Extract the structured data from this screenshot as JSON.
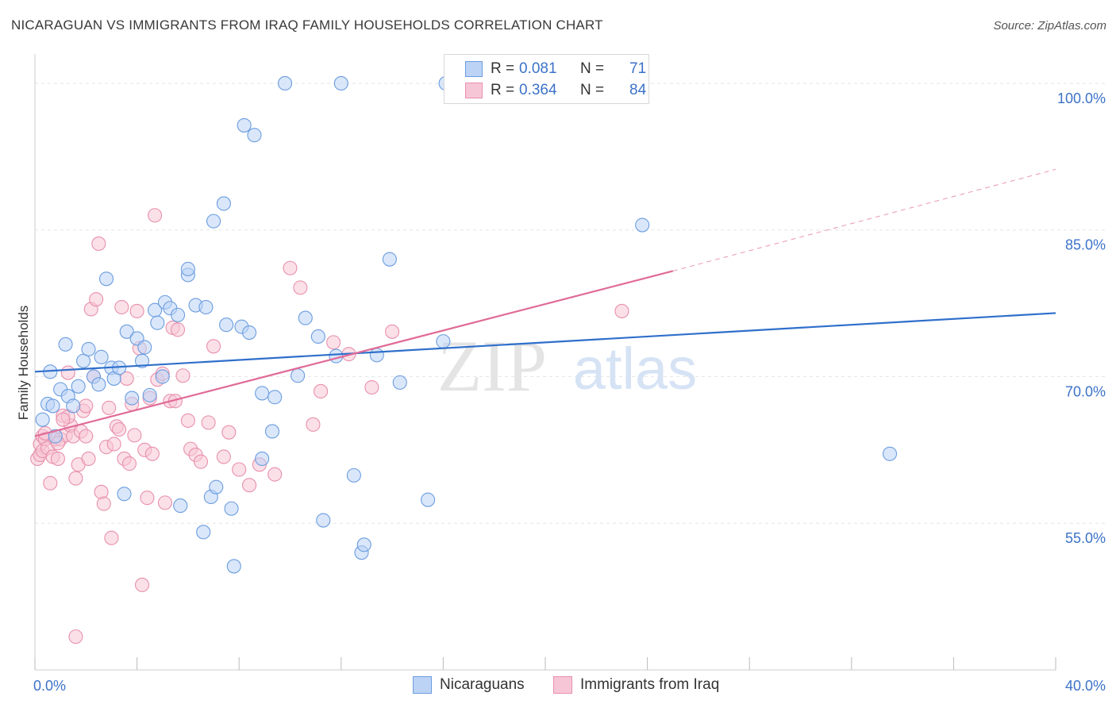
{
  "title": "NICARAGUAN VS IMMIGRANTS FROM IRAQ FAMILY HOUSEHOLDS CORRELATION CHART",
  "source": "Source: ZipAtlas.com",
  "watermark": {
    "zip": "ZIP",
    "atlas": "atlas"
  },
  "legend": {
    "rows": [
      {
        "r_label": "R =",
        "r_value": "0.081",
        "n_label": "N =",
        "n_value": "71"
      },
      {
        "r_label": "R =",
        "r_value": "0.364",
        "n_label": "N =",
        "n_value": "84"
      }
    ]
  },
  "bottom_legend": [
    "Nicaraguans",
    "Immigrants from Iraq"
  ],
  "colors": {
    "blue_fill": "#bcd3f5",
    "blue_stroke": "#6b9de0",
    "blue_line": "#2f6fcb",
    "pink_fill": "#f7c6d6",
    "pink_stroke": "#e890ad",
    "pink_line": "#e06b97",
    "axis_text": "#3c72c8",
    "grid": "#e6e6e6"
  },
  "chart_data": {
    "type": "scatter",
    "title": "NICARAGUAN VS IMMIGRANTS FROM IRAQ FAMILY HOUSEHOLDS CORRELATION CHART",
    "xlabel": "",
    "ylabel": "Family Households",
    "xlim": [
      0,
      40
    ],
    "ylim": [
      40,
      103
    ],
    "x_tick_labels": [
      "0.0%",
      "40.0%"
    ],
    "y_ticks": [
      55,
      70,
      85,
      100
    ],
    "y_tick_labels": [
      "55.0%",
      "70.0%",
      "85.0%",
      "100.0%"
    ],
    "grid": true,
    "series": [
      {
        "name": "Nicaraguans",
        "color": "#6b9de0",
        "trend": {
          "x0": 0,
          "y0": 70.5,
          "x1": 40,
          "y1": 76.5
        },
        "points": [
          [
            0.3,
            65.6
          ],
          [
            0.5,
            67.2
          ],
          [
            0.6,
            70.5
          ],
          [
            0.7,
            67.0
          ],
          [
            0.8,
            63.9
          ],
          [
            1.0,
            68.7
          ],
          [
            1.2,
            73.3
          ],
          [
            1.3,
            68.0
          ],
          [
            1.5,
            67.0
          ],
          [
            1.7,
            69.0
          ],
          [
            1.9,
            71.6
          ],
          [
            2.1,
            72.8
          ],
          [
            2.3,
            70.0
          ],
          [
            2.5,
            69.2
          ],
          [
            2.6,
            72.0
          ],
          [
            2.8,
            80.0
          ],
          [
            3.0,
            70.9
          ],
          [
            3.1,
            69.8
          ],
          [
            3.3,
            70.9
          ],
          [
            3.5,
            58.0
          ],
          [
            3.6,
            74.6
          ],
          [
            3.8,
            67.8
          ],
          [
            4.0,
            73.9
          ],
          [
            4.2,
            71.6
          ],
          [
            4.3,
            73.0
          ],
          [
            4.5,
            68.1
          ],
          [
            4.7,
            76.8
          ],
          [
            4.8,
            75.5
          ],
          [
            5.0,
            70.0
          ],
          [
            5.1,
            77.6
          ],
          [
            5.3,
            77.0
          ],
          [
            5.6,
            76.3
          ],
          [
            5.7,
            56.8
          ],
          [
            6.0,
            80.4
          ],
          [
            6.0,
            81.0
          ],
          [
            6.3,
            77.3
          ],
          [
            6.6,
            54.1
          ],
          [
            6.7,
            77.1
          ],
          [
            6.9,
            57.7
          ],
          [
            7.0,
            85.9
          ],
          [
            7.1,
            58.7
          ],
          [
            7.4,
            87.7
          ],
          [
            7.5,
            75.3
          ],
          [
            7.7,
            56.5
          ],
          [
            7.8,
            50.6
          ],
          [
            8.1,
            75.1
          ],
          [
            8.2,
            95.7
          ],
          [
            8.4,
            74.5
          ],
          [
            8.6,
            94.7
          ],
          [
            8.9,
            61.6
          ],
          [
            8.9,
            68.3
          ],
          [
            9.3,
            64.4
          ],
          [
            9.4,
            67.9
          ],
          [
            9.8,
            100.0
          ],
          [
            10.3,
            70.1
          ],
          [
            10.6,
            76.0
          ],
          [
            11.1,
            74.1
          ],
          [
            11.3,
            55.3
          ],
          [
            11.8,
            72.1
          ],
          [
            12.0,
            100.0
          ],
          [
            12.5,
            59.9
          ],
          [
            12.8,
            52.0
          ],
          [
            12.9,
            52.8
          ],
          [
            13.4,
            72.2
          ],
          [
            13.9,
            82.0
          ],
          [
            14.3,
            69.4
          ],
          [
            15.4,
            57.4
          ],
          [
            16.0,
            73.6
          ],
          [
            16.1,
            100.0
          ],
          [
            23.8,
            85.5
          ],
          [
            33.5,
            62.1
          ]
        ]
      },
      {
        "name": "Immigrants from Iraq",
        "color": "#e890ad",
        "trend": {
          "x0": 0,
          "y0": 63.9,
          "x1": 25,
          "y1": 80.8,
          "x_ext": 40,
          "y_ext": 91.2
        },
        "points": [
          [
            0.1,
            61.6
          ],
          [
            0.2,
            62.0
          ],
          [
            0.2,
            63.1
          ],
          [
            0.3,
            62.4
          ],
          [
            0.3,
            63.9
          ],
          [
            0.4,
            63.6
          ],
          [
            0.5,
            62.7
          ],
          [
            0.6,
            59.1
          ],
          [
            0.7,
            61.8
          ],
          [
            0.8,
            63.6
          ],
          [
            0.9,
            61.6
          ],
          [
            1.0,
            63.6
          ],
          [
            1.1,
            66.0
          ],
          [
            1.2,
            64.0
          ],
          [
            1.3,
            70.4
          ],
          [
            1.4,
            65.0
          ],
          [
            1.5,
            63.9
          ],
          [
            1.6,
            59.6
          ],
          [
            1.7,
            61.0
          ],
          [
            1.8,
            64.4
          ],
          [
            1.9,
            66.5
          ],
          [
            2.0,
            63.9
          ],
          [
            2.1,
            61.6
          ],
          [
            2.2,
            76.9
          ],
          [
            2.3,
            70.0
          ],
          [
            2.4,
            77.9
          ],
          [
            2.5,
            83.6
          ],
          [
            2.6,
            58.2
          ],
          [
            2.7,
            57.0
          ],
          [
            2.8,
            62.8
          ],
          [
            2.9,
            66.8
          ],
          [
            3.0,
            53.5
          ],
          [
            3.1,
            63.1
          ],
          [
            3.2,
            64.9
          ],
          [
            3.3,
            64.6
          ],
          [
            3.4,
            77.1
          ],
          [
            3.5,
            61.6
          ],
          [
            3.6,
            69.8
          ],
          [
            3.7,
            61.1
          ],
          [
            3.8,
            67.2
          ],
          [
            3.9,
            64.0
          ],
          [
            4.0,
            76.7
          ],
          [
            4.1,
            72.9
          ],
          [
            4.2,
            48.7
          ],
          [
            4.3,
            62.5
          ],
          [
            4.4,
            57.6
          ],
          [
            4.5,
            67.8
          ],
          [
            4.6,
            62.1
          ],
          [
            4.7,
            86.5
          ],
          [
            4.8,
            69.7
          ],
          [
            5.0,
            70.3
          ],
          [
            5.1,
            57.1
          ],
          [
            5.3,
            67.5
          ],
          [
            5.4,
            75.0
          ],
          [
            5.5,
            67.5
          ],
          [
            5.6,
            74.8
          ],
          [
            5.8,
            70.1
          ],
          [
            6.0,
            65.5
          ],
          [
            6.1,
            62.6
          ],
          [
            6.3,
            62.0
          ],
          [
            6.5,
            61.3
          ],
          [
            6.8,
            65.3
          ],
          [
            7.0,
            73.1
          ],
          [
            7.4,
            61.8
          ],
          [
            7.6,
            64.3
          ],
          [
            8.0,
            60.5
          ],
          [
            8.4,
            58.9
          ],
          [
            8.8,
            61.0
          ],
          [
            9.4,
            60.0
          ],
          [
            10.0,
            81.1
          ],
          [
            10.4,
            79.1
          ],
          [
            10.9,
            65.1
          ],
          [
            11.2,
            68.5
          ],
          [
            11.7,
            73.5
          ],
          [
            12.3,
            72.3
          ],
          [
            13.2,
            68.9
          ],
          [
            14.0,
            74.6
          ],
          [
            23.0,
            76.7
          ],
          [
            1.6,
            43.4
          ],
          [
            1.3,
            65.9
          ],
          [
            2.0,
            67.0
          ],
          [
            0.4,
            64.2
          ],
          [
            1.1,
            65.6
          ],
          [
            0.9,
            63.2
          ]
        ]
      }
    ]
  }
}
